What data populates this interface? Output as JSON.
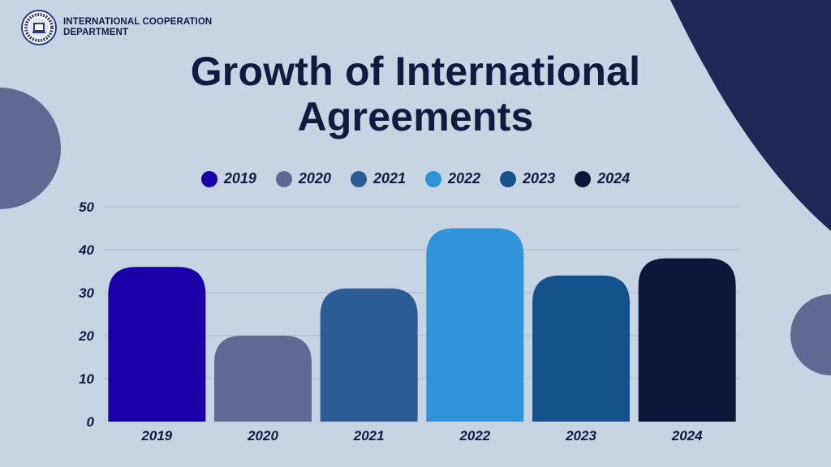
{
  "header": {
    "org_line1": "INTERNATIONAL COOPERATION",
    "org_line2": "DEPARTMENT",
    "logo_icon": "university-seal-icon"
  },
  "colors": {
    "background": "#c7d4e4",
    "text": "#111a3f",
    "deco_dark": "#1f2754",
    "deco_circle": "#5d6a92",
    "grid": "#aab8cb"
  },
  "chart_data": {
    "type": "bar",
    "title": "Growth of International Agreements",
    "title_line1": "Growth of International",
    "title_line2": "Agreements",
    "categories": [
      "2019",
      "2020",
      "2021",
      "2022",
      "2023",
      "2024"
    ],
    "values": [
      36,
      20,
      31,
      45,
      34,
      38
    ],
    "bar_colors": [
      "#1a00a8",
      "#5e6a92",
      "#2c5c96",
      "#2e93d8",
      "#15518a",
      "#0f1639"
    ],
    "legend": [
      "2019",
      "2020",
      "2021",
      "2022",
      "2023",
      "2024"
    ],
    "legend_position": "top-center",
    "xlabel": "",
    "ylabel": "",
    "ylim": [
      0,
      50
    ],
    "yticks": [
      0,
      10,
      20,
      30,
      40,
      50
    ],
    "grid": true
  }
}
